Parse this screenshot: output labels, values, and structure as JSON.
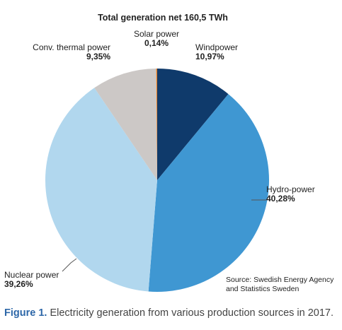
{
  "chart_data": {
    "type": "pie",
    "title": "Total generation net 160,5 TWh",
    "slices": [
      {
        "label": "Windpower",
        "value": 10.97,
        "value_label": "10,97%",
        "color": "#0f3a6b"
      },
      {
        "label": "Hydro-power",
        "value": 40.28,
        "value_label": "40,28%",
        "color": "#3f97d2"
      },
      {
        "label": "Nuclear power",
        "value": 39.26,
        "value_label": "39,26%",
        "color": "#b1d7ee"
      },
      {
        "label": "Conv. thermal power",
        "value": 9.35,
        "value_label": "9,35%",
        "color": "#ccc8c6"
      },
      {
        "label": "Solar power",
        "value": 0.14,
        "value_label": "0,14%",
        "color": "#e67e22"
      }
    ],
    "source_lines": [
      "Source: Swedish Energy Agency",
      "and Statistics Sweden"
    ]
  },
  "caption": {
    "figure_label": "Figure 1.",
    "text": " Electricity generation from various production sources in 2017."
  }
}
